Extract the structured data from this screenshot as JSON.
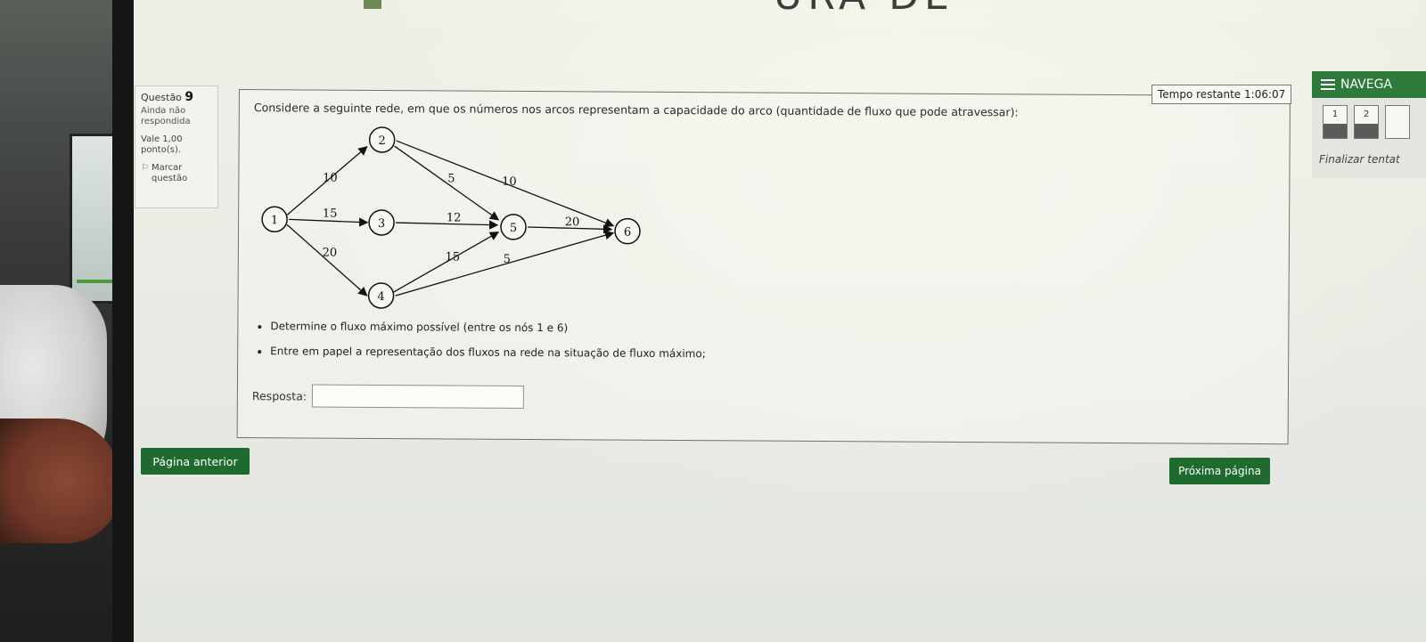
{
  "banner": {
    "title": "URA DE DADOS II"
  },
  "question": {
    "label": "Questão",
    "number": "9",
    "state": "Ainda não respondida",
    "grade": "Vale 1,00 ponto(s).",
    "flag_label": "Marcar questão",
    "text": "Considere a seguinte rede, em que os números nos arcos representam a capacidade do arco (quantidade de fluxo que pode atravessar):",
    "bullets": [
      "Determine o fluxo máximo possível (entre os nós 1 e 6)",
      "Entre em papel a representação dos fluxos na rede na situação de fluxo máximo;"
    ],
    "answer_label": "Resposta:",
    "answer_value": ""
  },
  "network": {
    "nodes": [
      "1",
      "2",
      "3",
      "4",
      "5",
      "6"
    ],
    "arcs": [
      {
        "from": "1",
        "to": "2",
        "capacity": "10"
      },
      {
        "from": "1",
        "to": "3",
        "capacity": "15"
      },
      {
        "from": "1",
        "to": "4",
        "capacity": "20"
      },
      {
        "from": "2",
        "to": "5",
        "capacity": "5"
      },
      {
        "from": "2",
        "to": "6",
        "capacity": "10"
      },
      {
        "from": "3",
        "to": "5",
        "capacity": "12"
      },
      {
        "from": "4",
        "to": "5",
        "capacity": "15"
      },
      {
        "from": "4",
        "to": "6",
        "capacity": "5"
      },
      {
        "from": "5",
        "to": "6",
        "capacity": "20"
      }
    ]
  },
  "timer": {
    "label": "Tempo restante",
    "value": "1:06:07"
  },
  "nav": {
    "title": "NAVEGA",
    "buttons": [
      "1",
      "2",
      ""
    ],
    "finish_label": "Finalizar tentat"
  },
  "footer": {
    "prev_label": "Página anterior",
    "next_label": "Próxima página"
  },
  "colors": {
    "accent": "#1f6b2f",
    "nav_header": "#2d7a3a"
  }
}
